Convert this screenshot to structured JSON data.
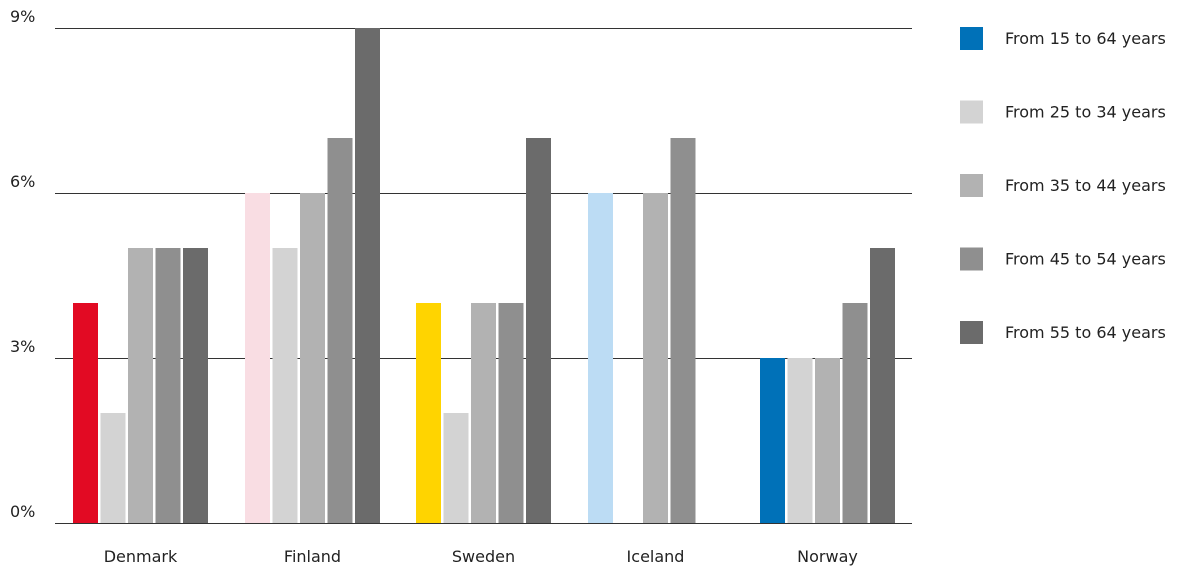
{
  "chart_data": {
    "type": "bar",
    "title": "",
    "xlabel": "",
    "ylabel": "",
    "categories": [
      "Denmark",
      "Finland",
      "Sweden",
      "Iceland",
      "Norway"
    ],
    "country_colors": [
      "#e20a23",
      "#f9dde3",
      "#ffd400",
      "#bcdcf4",
      "#0071b8"
    ],
    "series": [
      {
        "name": "From 15 to 64 years",
        "color": "#0071b8",
        "values": [
          4,
          6,
          4,
          6,
          3
        ]
      },
      {
        "name": "From 25 to 34 years",
        "color": "#d3d3d3",
        "values": [
          2,
          5,
          2,
          null,
          3
        ]
      },
      {
        "name": "From 35 to 44 years",
        "color": "#b2b2b2",
        "values": [
          5,
          6,
          4,
          6,
          3
        ]
      },
      {
        "name": "From 45 to 54 years",
        "color": "#8f8f8f",
        "values": [
          5,
          7,
          4,
          7,
          4
        ]
      },
      {
        "name": "From 55 to 64 years",
        "color": "#6b6b6b",
        "values": [
          5,
          9,
          7,
          null,
          5
        ]
      }
    ],
    "yticks": [
      0,
      3,
      6,
      9
    ],
    "ytick_labels": [
      "0%",
      "3%",
      "6%",
      "9%"
    ],
    "ylim": [
      0,
      9
    ],
    "grid": true,
    "legend_position": "right"
  }
}
